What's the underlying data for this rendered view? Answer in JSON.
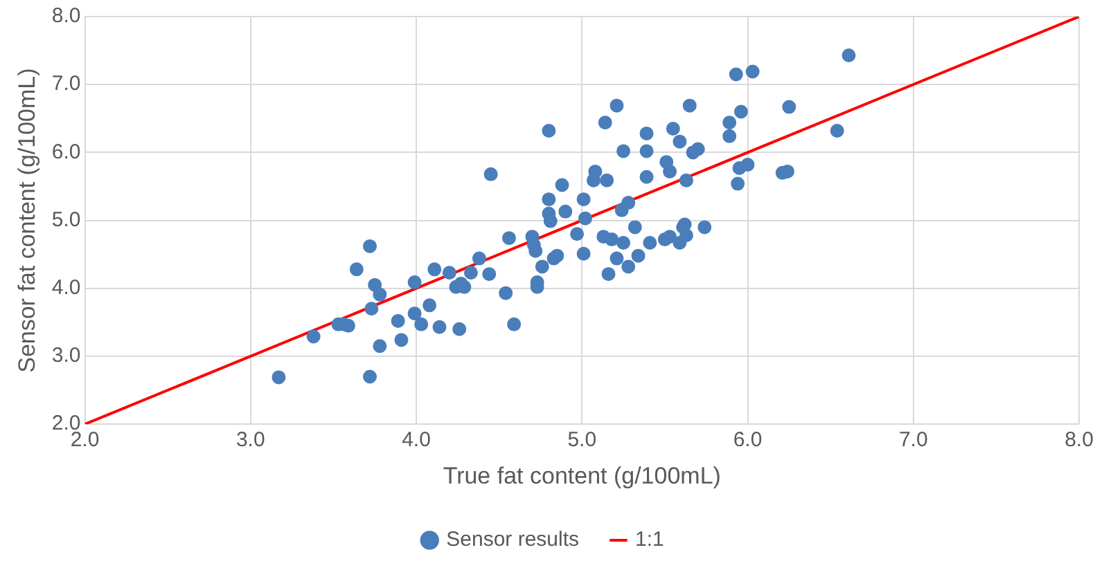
{
  "chart_data": {
    "type": "scatter",
    "xlabel": "True fat content (g/100mL)",
    "ylabel": "Sensor fat content (g/100mL)",
    "xlim": [
      2,
      8
    ],
    "ylim": [
      2,
      8
    ],
    "xticks": [
      {
        "value": 2,
        "label": "2.0"
      },
      {
        "value": 3,
        "label": "3.0"
      },
      {
        "value": 4,
        "label": "4.0"
      },
      {
        "value": 5,
        "label": "5.0"
      },
      {
        "value": 6,
        "label": "6.0"
      },
      {
        "value": 7,
        "label": "7.0"
      },
      {
        "value": 8,
        "label": "8.0"
      }
    ],
    "yticks": [
      {
        "value": 2,
        "label": "2.0"
      },
      {
        "value": 3,
        "label": "3.0"
      },
      {
        "value": 4,
        "label": "4.0"
      },
      {
        "value": 5,
        "label": "5.0"
      },
      {
        "value": 6,
        "label": "6.0"
      },
      {
        "value": 7,
        "label": "7.0"
      },
      {
        "value": 8,
        "label": "8.0"
      }
    ],
    "grid": true,
    "legend": "bottom",
    "line_style": "solid",
    "series": [
      {
        "name": "Sensor results",
        "marker": "circle",
        "color": "#4a7ebb",
        "x": [
          3.17,
          3.38,
          3.53,
          3.56,
          3.59,
          3.72,
          3.64,
          3.75,
          3.78,
          3.73,
          3.78,
          3.72,
          3.89,
          3.91,
          3.99,
          3.99,
          4.03,
          4.08,
          4.11,
          4.14,
          4.2,
          4.26,
          4.24,
          4.27,
          4.29,
          4.33,
          4.38,
          4.44,
          4.54,
          4.56,
          4.59,
          4.45,
          4.8,
          5.14,
          5.39,
          5.55,
          5.59,
          5.89,
          5.89,
          5.25,
          5.39,
          5.67,
          5.7,
          5.51,
          5.53,
          5.08,
          5.07,
          5.15,
          5.39,
          5.63,
          5.95,
          6.0,
          5.94,
          6.21,
          6.24,
          4.88,
          4.8,
          4.8,
          4.81,
          4.9,
          5.01,
          5.02,
          4.97,
          5.24,
          5.28,
          5.32,
          5.13,
          5.18,
          5.25,
          5.41,
          5.5,
          5.53,
          5.59,
          5.61,
          5.62,
          5.63,
          5.74,
          5.21,
          5.34,
          5.28,
          5.16,
          5.01,
          4.85,
          4.83,
          4.76,
          4.73,
          4.73,
          4.7,
          4.71,
          4.72,
          5.93,
          6.03,
          5.21,
          5.65,
          6.25,
          5.96,
          6.61,
          6.54
        ],
        "values": [
          2.69,
          3.29,
          3.47,
          3.47,
          3.45,
          4.62,
          4.28,
          4.05,
          3.91,
          3.7,
          3.15,
          2.7,
          3.52,
          3.24,
          4.09,
          3.63,
          3.47,
          3.75,
          4.28,
          3.43,
          4.23,
          3.4,
          4.02,
          4.07,
          4.02,
          4.23,
          4.44,
          4.21,
          3.93,
          4.74,
          3.47,
          5.68,
          6.32,
          6.44,
          6.28,
          6.35,
          6.16,
          6.44,
          6.24,
          6.02,
          6.02,
          6.0,
          6.05,
          5.86,
          5.72,
          5.72,
          5.59,
          5.59,
          5.64,
          5.59,
          5.77,
          5.82,
          5.54,
          5.7,
          5.72,
          5.52,
          5.31,
          5.1,
          4.99,
          5.13,
          5.31,
          5.03,
          4.8,
          5.15,
          5.26,
          4.9,
          4.76,
          4.72,
          4.67,
          4.67,
          4.72,
          4.76,
          4.67,
          4.9,
          4.94,
          4.78,
          4.9,
          4.44,
          4.48,
          4.32,
          4.21,
          4.51,
          4.48,
          4.44,
          4.32,
          4.09,
          4.02,
          4.76,
          4.64,
          4.55,
          7.15,
          7.19,
          6.69,
          6.69,
          6.67,
          6.6,
          7.43,
          6.32
        ]
      },
      {
        "name": "1:1",
        "type": "line",
        "marker": "none",
        "color": "#ff0000",
        "x": [
          2,
          8
        ],
        "values": [
          2,
          8
        ]
      }
    ]
  }
}
